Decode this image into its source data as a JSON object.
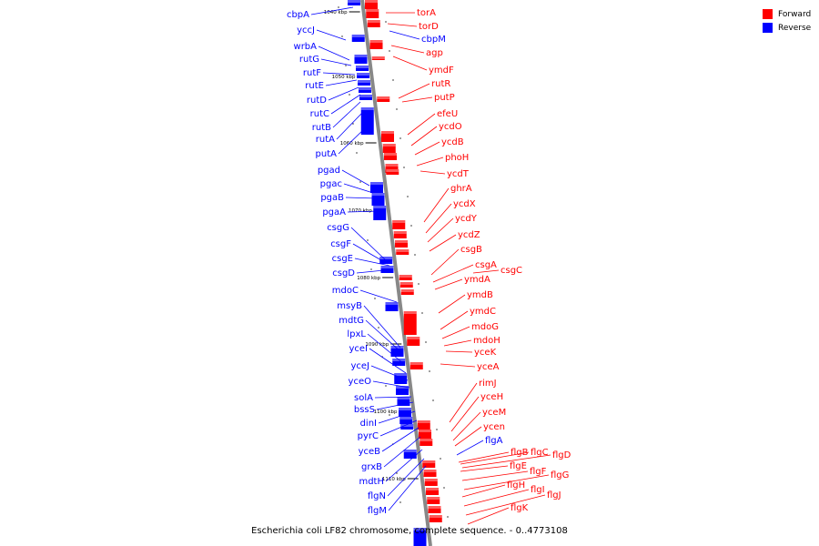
{
  "colors": {
    "forward": "#ff0000",
    "reverse": "#0000ff",
    "backbone": "#888888",
    "tick": "#000000"
  },
  "caption": "Escherichia coli LF82 chromosome, complete sequence. - 0..4773108",
  "legend": [
    {
      "label": "Forward",
      "color": "#ff0000"
    },
    {
      "label": "Reverse",
      "color": "#0000ff"
    }
  ],
  "scale_labels": [
    "1040 kbp",
    "1050 kbp",
    "1060 kbp",
    "1070 kbp",
    "1080 kbp",
    "1090 kbp",
    "1100 kbp",
    "1110 kbp"
  ],
  "reverse_genes": [
    "cbpA",
    "yccJ",
    "wrbA",
    "rutG",
    "rutF",
    "rutE",
    "rutD",
    "rutC",
    "rutB",
    "rutA",
    "putA",
    "pgad",
    "pgac",
    "pgaB",
    "pgaA",
    "csgG",
    "csgF",
    "csgE",
    "csgD",
    "mdoC",
    "msyB",
    "mdtG",
    "lpxL",
    "yceI",
    "yceJ",
    "yceO",
    "solA",
    "bssS",
    "dinI",
    "pyrC",
    "yceB",
    "grxB",
    "mdtH",
    "flgN",
    "flgM"
  ],
  "forward_genes": [
    "torA",
    "torD",
    "agp",
    "ymdF",
    "rutR",
    "putP",
    "efeU",
    "ycdO",
    "ycdB",
    "phoH",
    "ycdT",
    "ghrA",
    "ycdX",
    "ycdY",
    "ycdZ",
    "csgB",
    "csgA",
    "csgC",
    "ymdA",
    "ymdB",
    "ymdC",
    "mdoG",
    "mdoH",
    "yceK",
    "yceA",
    "rimJ",
    "yceH",
    "yceM",
    "ycen",
    "flgB",
    "flgC",
    "flgD",
    "flgE",
    "flgF",
    "flgG",
    "flgH",
    "flgI",
    "flgJ",
    "flgK"
  ],
  "right_reverse_genes": [
    "cbpM",
    "flgA"
  ]
}
